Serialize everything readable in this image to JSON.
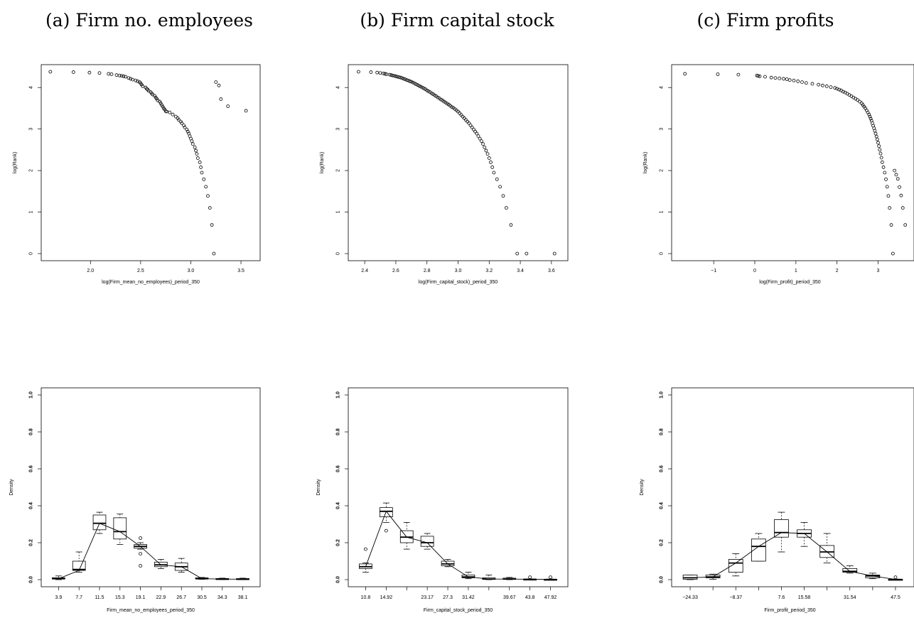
{
  "panel_titles": [
    "(a) Firm no. employees",
    "(b) Firm capital stock",
    "(c) Firm profits"
  ],
  "chart_data": [
    {
      "type": "scatter",
      "xlabel": "log(Firm_mean_no_employees)_period_350",
      "ylabel": "log(Rank)",
      "xlim": [
        1.58,
        3.62
      ],
      "ylim": [
        0,
        4.38
      ],
      "x_ticks": [
        2.0,
        2.5,
        3.0,
        3.5
      ],
      "x_tick_labels": [
        "2.0",
        "2.5",
        "3.0",
        "3.5"
      ],
      "y_ticks": [
        0,
        1,
        2,
        3,
        4
      ],
      "y_tick_labels": [
        "0",
        "1",
        "2",
        "3",
        "4"
      ],
      "points": {
        "x": [
          1.6,
          1.83,
          1.99,
          2.09,
          2.18,
          2.21,
          2.26,
          2.29,
          2.31,
          2.33,
          2.35,
          2.38,
          2.4,
          2.42,
          2.45,
          2.47,
          2.49,
          2.5,
          2.51,
          2.52,
          2.55,
          2.56,
          2.57,
          2.58,
          2.6,
          2.61,
          2.62,
          2.64,
          2.65,
          2.66,
          2.67,
          2.69,
          2.7,
          2.71,
          2.72,
          2.73,
          2.74,
          2.75,
          2.76,
          2.79,
          2.82,
          2.85,
          2.87,
          2.88,
          2.9,
          2.91,
          2.93,
          2.94,
          2.96,
          2.97,
          2.98,
          2.99,
          3.0,
          3.01,
          3.02,
          3.04,
          3.05,
          3.06,
          3.07,
          3.09,
          3.1,
          3.11,
          3.13,
          3.15,
          3.17,
          3.19,
          3.21,
          3.23,
          3.25,
          3.28,
          3.3,
          3.37,
          3.55
        ],
        "y": [
          4.38,
          4.37,
          4.36,
          4.35,
          4.33,
          4.32,
          4.3,
          4.29,
          4.28,
          4.27,
          4.26,
          4.23,
          4.21,
          4.19,
          4.17,
          4.15,
          4.13,
          4.1,
          4.07,
          4.03,
          4.0,
          3.97,
          3.95,
          3.92,
          3.89,
          3.86,
          3.83,
          3.8,
          3.76,
          3.73,
          3.69,
          3.66,
          3.62,
          3.58,
          3.54,
          3.5,
          3.47,
          3.43,
          3.42,
          3.4,
          3.35,
          3.3,
          3.26,
          3.22,
          3.18,
          3.14,
          3.09,
          3.04,
          2.99,
          2.94,
          2.89,
          2.83,
          2.77,
          2.71,
          2.64,
          2.56,
          2.48,
          2.4,
          2.3,
          2.2,
          2.08,
          1.95,
          1.79,
          1.61,
          1.39,
          1.1,
          0.69,
          0.0,
          4.13,
          4.05,
          3.72,
          3.55,
          3.44
        ]
      }
    },
    {
      "type": "scatter",
      "xlabel": "log(Firm_capital_stock)_period_350",
      "ylabel": "log(Rank)",
      "xlim": [
        2.34,
        3.66
      ],
      "ylim": [
        0,
        4.38
      ],
      "x_ticks": [
        2.4,
        2.6,
        2.8,
        3.0,
        3.2,
        3.4,
        3.6
      ],
      "x_tick_labels": [
        "2.4",
        "2.6",
        "2.8",
        "3.0",
        "3.2",
        "3.4",
        "3.6"
      ],
      "y_ticks": [
        0,
        1,
        2,
        3,
        4
      ],
      "y_tick_labels": [
        "0",
        "1",
        "2",
        "3",
        "4"
      ],
      "points": {
        "x": [
          2.36,
          2.44,
          2.48,
          2.5,
          2.52,
          2.53,
          2.54,
          2.56,
          2.57,
          2.58,
          2.59,
          2.6,
          2.61,
          2.62,
          2.63,
          2.64,
          2.65,
          2.66,
          2.67,
          2.68,
          2.69,
          2.7,
          2.71,
          2.72,
          2.73,
          2.74,
          2.75,
          2.76,
          2.77,
          2.78,
          2.79,
          2.8,
          2.81,
          2.82,
          2.83,
          2.84,
          2.85,
          2.86,
          2.87,
          2.88,
          2.89,
          2.9,
          2.91,
          2.92,
          2.93,
          2.94,
          2.95,
          2.96,
          2.97,
          2.98,
          2.99,
          3.0,
          3.01,
          3.02,
          3.03,
          3.04,
          3.05,
          3.06,
          3.07,
          3.08,
          3.09,
          3.1,
          3.11,
          3.12,
          3.13,
          3.14,
          3.15,
          3.16,
          3.17,
          3.18,
          3.19,
          3.2,
          3.21,
          3.22,
          3.23,
          3.25,
          3.27,
          3.29,
          3.31,
          3.34,
          3.38,
          3.44,
          3.62
        ],
        "y": [
          4.38,
          4.37,
          4.36,
          4.35,
          4.34,
          4.33,
          4.32,
          4.31,
          4.3,
          4.29,
          4.28,
          4.27,
          4.26,
          4.25,
          4.24,
          4.23,
          4.21,
          4.2,
          4.18,
          4.17,
          4.15,
          4.14,
          4.12,
          4.1,
          4.08,
          4.06,
          4.04,
          4.02,
          4.0,
          3.98,
          3.96,
          3.93,
          3.91,
          3.89,
          3.86,
          3.84,
          3.81,
          3.79,
          3.76,
          3.74,
          3.71,
          3.69,
          3.66,
          3.64,
          3.61,
          3.59,
          3.56,
          3.53,
          3.51,
          3.48,
          3.45,
          3.42,
          3.38,
          3.34,
          3.3,
          3.26,
          3.22,
          3.18,
          3.14,
          3.09,
          3.04,
          2.99,
          2.94,
          2.89,
          2.83,
          2.77,
          2.71,
          2.64,
          2.56,
          2.48,
          2.4,
          2.3,
          2.2,
          2.08,
          1.95,
          1.79,
          1.61,
          1.39,
          1.1,
          0.69,
          0.0,
          0.0,
          0.0
        ]
      }
    },
    {
      "type": "scatter",
      "xlabel": "log(Firm_profit)_period_350",
      "ylabel": "log(Rank)",
      "xlim": [
        -1.85,
        3.7
      ],
      "ylim": [
        0,
        4.38
      ],
      "x_ticks": [
        -1,
        0,
        1,
        2,
        3
      ],
      "x_tick_labels": [
        "−1",
        "0",
        "1",
        "2",
        "3"
      ],
      "y_ticks": [
        0,
        1,
        2,
        3,
        4
      ],
      "y_tick_labels": [
        "0",
        "1",
        "2",
        "3",
        "4"
      ],
      "points": {
        "x": [
          -1.7,
          -0.9,
          -0.4,
          0.05,
          0.08,
          0.12,
          0.25,
          0.4,
          0.5,
          0.6,
          0.7,
          0.78,
          0.85,
          0.95,
          1.05,
          1.15,
          1.25,
          1.4,
          1.55,
          1.65,
          1.75,
          1.85,
          1.95,
          2.0,
          2.05,
          2.1,
          2.15,
          2.2,
          2.25,
          2.3,
          2.35,
          2.4,
          2.45,
          2.5,
          2.55,
          2.6,
          2.63,
          2.66,
          2.69,
          2.72,
          2.75,
          2.78,
          2.8,
          2.82,
          2.84,
          2.86,
          2.88,
          2.9,
          2.92,
          2.94,
          2.96,
          2.98,
          3.0,
          3.02,
          3.04,
          3.06,
          3.08,
          3.1,
          3.13,
          3.16,
          3.19,
          3.22,
          3.25,
          3.28,
          3.32,
          3.36,
          3.4,
          3.44,
          3.48,
          3.52,
          3.56,
          3.6,
          3.66
        ],
        "y": [
          4.33,
          4.32,
          4.31,
          4.29,
          4.28,
          4.27,
          4.26,
          4.24,
          4.23,
          4.22,
          4.21,
          4.2,
          4.18,
          4.17,
          4.15,
          4.13,
          4.11,
          4.09,
          4.07,
          4.05,
          4.03,
          4.01,
          3.99,
          3.97,
          3.95,
          3.93,
          3.9,
          3.88,
          3.85,
          3.82,
          3.79,
          3.76,
          3.73,
          3.7,
          3.66,
          3.62,
          3.58,
          3.54,
          3.5,
          3.45,
          3.4,
          3.35,
          3.3,
          3.25,
          3.2,
          3.14,
          3.08,
          3.02,
          2.96,
          2.89,
          2.82,
          2.75,
          2.67,
          2.59,
          2.5,
          2.41,
          2.31,
          2.2,
          2.08,
          1.95,
          1.79,
          1.61,
          1.39,
          1.1,
          0.69,
          0.0,
          2.0,
          1.9,
          1.8,
          1.6,
          1.4,
          1.1,
          0.69
        ]
      }
    },
    {
      "type": "boxplot",
      "xlabel": "Firm_mean_no_employees_period_350",
      "ylabel": "Density",
      "ylim": [
        0,
        1.0
      ],
      "y_ticks": [
        0,
        0.2,
        0.4,
        0.6,
        0.8,
        1.0
      ],
      "y_tick_labels": [
        "0.0",
        "0.2",
        "0.4",
        "0.6",
        "0.8",
        "1.0"
      ],
      "categories": [
        "3.9",
        "7.7",
        "11.5",
        "15.3",
        "19.1",
        "22.9",
        "26.7",
        "30.5",
        "34.3",
        "38.1"
      ],
      "boxes": [
        {
          "wlo": 0.0,
          "q1": 0.003,
          "med": 0.006,
          "q3": 0.01,
          "whi": 0.02,
          "out": []
        },
        {
          "wlo": 0.04,
          "q1": 0.05,
          "med": 0.055,
          "q3": 0.1,
          "whi": 0.15,
          "out": []
        },
        {
          "wlo": 0.25,
          "q1": 0.27,
          "med": 0.305,
          "q3": 0.35,
          "whi": 0.365,
          "out": []
        },
        {
          "wlo": 0.19,
          "q1": 0.22,
          "med": 0.26,
          "q3": 0.335,
          "whi": 0.355,
          "out": []
        },
        {
          "wlo": 0.165,
          "q1": 0.17,
          "med": 0.18,
          "q3": 0.19,
          "whi": 0.2,
          "out": [
            0.225,
            0.14,
            0.075
          ]
        },
        {
          "wlo": 0.06,
          "q1": 0.07,
          "med": 0.08,
          "q3": 0.095,
          "whi": 0.11,
          "out": []
        },
        {
          "wlo": 0.04,
          "q1": 0.05,
          "med": 0.07,
          "q3": 0.09,
          "whi": 0.115,
          "out": []
        },
        {
          "wlo": 0.002,
          "q1": 0.004,
          "med": 0.005,
          "q3": 0.01,
          "whi": 0.012,
          "out": []
        },
        {
          "wlo": 0.001,
          "q1": 0.002,
          "med": 0.003,
          "q3": 0.006,
          "whi": 0.008,
          "out": []
        },
        {
          "wlo": 0.0,
          "q1": 0.001,
          "med": 0.002,
          "q3": 0.006,
          "whi": 0.008,
          "out": []
        }
      ],
      "line": [
        0.005,
        0.05,
        0.305,
        0.26,
        0.18,
        0.08,
        0.07,
        0.005,
        0.003,
        0.002
      ]
    },
    {
      "type": "boxplot",
      "xlabel": "Firm_capital_stock_period_350",
      "ylabel": "Density",
      "ylim": [
        0,
        1.0
      ],
      "y_ticks": [
        0,
        0.2,
        0.4,
        0.6,
        0.8,
        1.0
      ],
      "y_tick_labels": [
        "0.0",
        "0.2",
        "0.4",
        "0.6",
        "0.8",
        "1.0"
      ],
      "categories": [
        "10.8",
        "14.92",
        "",
        "23.17",
        "27.3",
        "31.42",
        "",
        "39.67",
        "43.8",
        "47.92"
      ],
      "boxes": [
        {
          "wlo": 0.04,
          "q1": 0.06,
          "med": 0.07,
          "q3": 0.085,
          "whi": 0.09,
          "out": [
            0.165
          ]
        },
        {
          "wlo": 0.31,
          "q1": 0.34,
          "med": 0.37,
          "q3": 0.39,
          "whi": 0.415,
          "out": [
            0.265
          ]
        },
        {
          "wlo": 0.165,
          "q1": 0.2,
          "med": 0.23,
          "q3": 0.265,
          "whi": 0.31,
          "out": []
        },
        {
          "wlo": 0.165,
          "q1": 0.18,
          "med": 0.2,
          "q3": 0.235,
          "whi": 0.25,
          "out": []
        },
        {
          "wlo": 0.07,
          "q1": 0.075,
          "med": 0.085,
          "q3": 0.1,
          "whi": 0.11,
          "out": []
        },
        {
          "wlo": 0.005,
          "q1": 0.01,
          "med": 0.015,
          "q3": 0.025,
          "whi": 0.04,
          "out": []
        },
        {
          "wlo": 0.0,
          "q1": 0.002,
          "med": 0.003,
          "q3": 0.01,
          "whi": 0.025,
          "out": []
        },
        {
          "wlo": 0.0,
          "q1": 0.002,
          "med": 0.003,
          "q3": 0.008,
          "whi": 0.012,
          "out": []
        },
        {
          "wlo": 0.0,
          "q1": 0.001,
          "med": 0.002,
          "q3": 0.003,
          "whi": 0.004,
          "out": [
            0.013
          ]
        },
        {
          "wlo": 0.0,
          "q1": 0.0,
          "med": 0.001,
          "q3": 0.002,
          "whi": 0.003,
          "out": [
            0.013
          ]
        }
      ],
      "line": [
        0.07,
        0.37,
        0.23,
        0.2,
        0.085,
        0.015,
        0.003,
        0.003,
        0.002,
        0.001
      ]
    },
    {
      "type": "boxplot",
      "xlabel": "Firm_profit_period_350",
      "ylabel": "Density",
      "ylim": [
        0,
        1.0
      ],
      "y_ticks": [
        0,
        0.2,
        0.4,
        0.6,
        0.8,
        1.0
      ],
      "y_tick_labels": [
        "0.0",
        "0.2",
        "0.4",
        "0.6",
        "0.8",
        "1.0"
      ],
      "categories": [
        "−24.33",
        "",
        "−8.37",
        "",
        "7.6",
        "15.58",
        "",
        "31.54",
        "",
        "47.5"
      ],
      "boxes": [
        {
          "wlo": 0.0,
          "q1": 0.002,
          "med": 0.01,
          "q3": 0.025,
          "whi": 0.025,
          "out": []
        },
        {
          "wlo": 0.002,
          "q1": 0.01,
          "med": 0.015,
          "q3": 0.025,
          "whi": 0.03,
          "out": []
        },
        {
          "wlo": 0.02,
          "q1": 0.04,
          "med": 0.09,
          "q3": 0.11,
          "whi": 0.14,
          "out": []
        },
        {
          "wlo": 0.1,
          "q1": 0.1,
          "med": 0.18,
          "q3": 0.22,
          "whi": 0.25,
          "out": []
        },
        {
          "wlo": 0.15,
          "q1": 0.23,
          "med": 0.255,
          "q3": 0.325,
          "whi": 0.365,
          "out": []
        },
        {
          "wlo": 0.18,
          "q1": 0.23,
          "med": 0.25,
          "q3": 0.27,
          "whi": 0.31,
          "out": []
        },
        {
          "wlo": 0.09,
          "q1": 0.12,
          "med": 0.15,
          "q3": 0.185,
          "whi": 0.25,
          "out": []
        },
        {
          "wlo": 0.035,
          "q1": 0.04,
          "med": 0.045,
          "q3": 0.06,
          "whi": 0.075,
          "out": []
        },
        {
          "wlo": 0.005,
          "q1": 0.01,
          "med": 0.02,
          "q3": 0.025,
          "whi": 0.035,
          "out": []
        },
        {
          "wlo": 0.0,
          "q1": 0.0,
          "med": 0.001,
          "q3": 0.002,
          "whi": 0.003,
          "out": [
            0.013
          ]
        }
      ],
      "line": [
        0.01,
        0.015,
        0.09,
        0.18,
        0.255,
        0.25,
        0.15,
        0.045,
        0.02,
        0.001
      ]
    }
  ]
}
